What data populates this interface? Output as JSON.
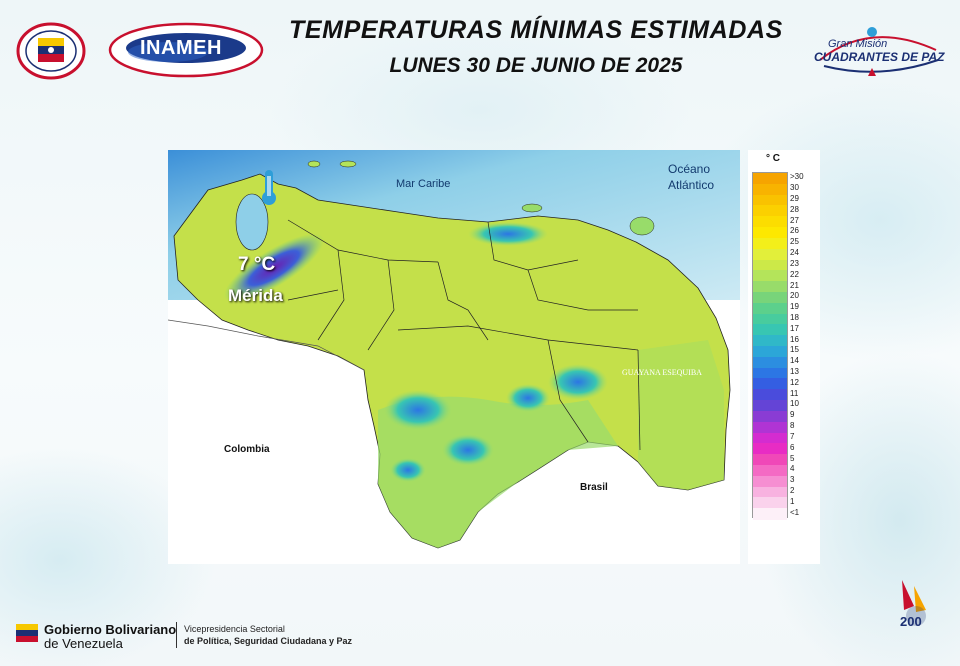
{
  "header": {
    "title": "TEMPERATURAS  MÍNIMAS  ESTIMADAS",
    "subtitle": "LUNES 30 DE JUNIO DE 2025",
    "logo_left": "venezuela-coat-of-arms-seal",
    "logo_inameh": "INAMEH",
    "logo_right_line1": "Gran Misión",
    "logo_right_line2": "CUADRANTES DE PAZ"
  },
  "map": {
    "labels": {
      "caribbean": "Mar Caribe",
      "atlantic_1": "Océano",
      "atlantic_2": "Atlántico",
      "colombia": "Colombia",
      "brasil": "Brasil",
      "guayana": "GUAYANA ESEQUIBA",
      "merida_temp": "7 °C",
      "merida": "Mérida"
    },
    "highlight_color": "#7b1fa2"
  },
  "legend": {
    "unit": "° C",
    "levels": [
      {
        "label": ">30",
        "color": "#f6a400"
      },
      {
        "label": "30",
        "color": "#f8b300"
      },
      {
        "label": "29",
        "color": "#f9c200"
      },
      {
        "label": "28",
        "color": "#fbd000"
      },
      {
        "label": "27",
        "color": "#fcdd00"
      },
      {
        "label": "26",
        "color": "#fde800"
      },
      {
        "label": "25",
        "color": "#f3ef1a"
      },
      {
        "label": "24",
        "color": "#e2ef3a"
      },
      {
        "label": "23",
        "color": "#cce948"
      },
      {
        "label": "22",
        "color": "#b4e45a"
      },
      {
        "label": "21",
        "color": "#98dc6a"
      },
      {
        "label": "20",
        "color": "#78d47a"
      },
      {
        "label": "19",
        "color": "#5cd08c"
      },
      {
        "label": "18",
        "color": "#48cc9e"
      },
      {
        "label": "17",
        "color": "#38c6b2"
      },
      {
        "label": "16",
        "color": "#30b8c8"
      },
      {
        "label": "15",
        "color": "#2ca6d8"
      },
      {
        "label": "14",
        "color": "#2c8ee0"
      },
      {
        "label": "13",
        "color": "#2c76e4"
      },
      {
        "label": "12",
        "color": "#345ee2"
      },
      {
        "label": "11",
        "color": "#4a4cdc"
      },
      {
        "label": "10",
        "color": "#6444d6"
      },
      {
        "label": "9",
        "color": "#8a3cd4"
      },
      {
        "label": "8",
        "color": "#b034d4"
      },
      {
        "label": "7",
        "color": "#d42cd0"
      },
      {
        "label": "6",
        "color": "#e82cc4"
      },
      {
        "label": "5",
        "color": "#f048b8"
      },
      {
        "label": "4",
        "color": "#f46ac4"
      },
      {
        "label": "3",
        "color": "#f68ed2"
      },
      {
        "label": "2",
        "color": "#f8b2e0"
      },
      {
        "label": "1",
        "color": "#fad2ec"
      },
      {
        "label": "<1",
        "color": "#fdf0f8"
      }
    ]
  },
  "footer": {
    "gov_line1": "Gobierno Bolivariano",
    "gov_line2": "de Venezuela",
    "vp_line1": "Vicepresidencia Sectorial",
    "vp_line2": "de Política, Seguridad Ciudadana y Paz",
    "logo_200": "200"
  }
}
